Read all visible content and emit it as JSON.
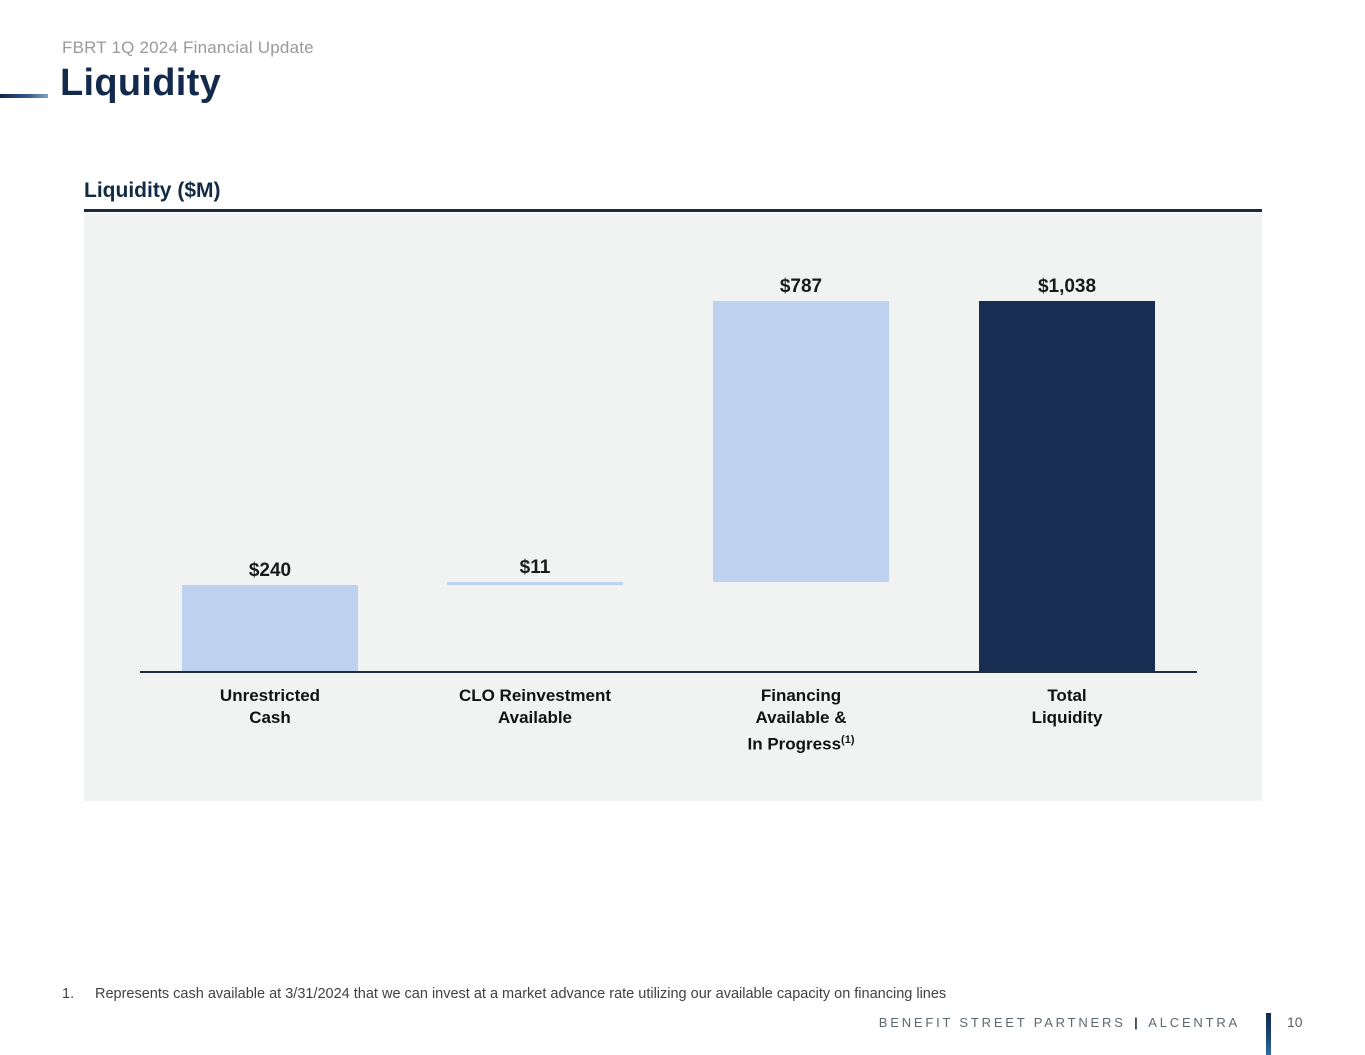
{
  "header": {
    "eyebrow": "FBRT 1Q 2024 Financial Update",
    "title": "Liquidity"
  },
  "chart_section": {
    "title": "Liquidity ($M)"
  },
  "chart_data": {
    "type": "bar",
    "subtype": "waterfall",
    "title": "Liquidity ($M)",
    "unit": "$M",
    "categories": [
      "Unrestricted Cash",
      "CLO Reinvestment Available",
      "Financing Available & In Progress (1)",
      "Total Liquidity"
    ],
    "values": [
      240,
      11,
      787,
      1038
    ],
    "ylim": [
      0,
      1285
    ],
    "grid": false,
    "legend": "none",
    "colors": {
      "light": "#bdd2ef",
      "dark": "#172d52"
    },
    "bars": [
      {
        "label_lines": [
          "Unrestricted",
          "Cash"
        ],
        "label_sup": "",
        "value": 240,
        "display": "$240",
        "base": 0,
        "color_key": "light"
      },
      {
        "label_lines": [
          "CLO Reinvestment",
          "Available"
        ],
        "label_sup": "",
        "value": 11,
        "display": "$11",
        "base": 240,
        "color_key": "light"
      },
      {
        "label_lines": [
          "Financing",
          "Available &",
          "In Progress"
        ],
        "label_sup": "(1)",
        "value": 787,
        "display": "$787",
        "base": 251,
        "color_key": "light"
      },
      {
        "label_lines": [
          "Total",
          "Liquidity"
        ],
        "label_sup": "",
        "value": 1038,
        "display": "$1,038",
        "base": 0,
        "color_key": "dark"
      }
    ]
  },
  "footnote": {
    "number": "1.",
    "text": "Represents cash available at 3/31/2024 that we can invest at a market advance rate utilizing our available capacity on financing lines"
  },
  "footer": {
    "brand": "BENEFIT STREET PARTNERS",
    "separator": "|",
    "brand2": "ALCENTRA",
    "page_number": "10"
  }
}
